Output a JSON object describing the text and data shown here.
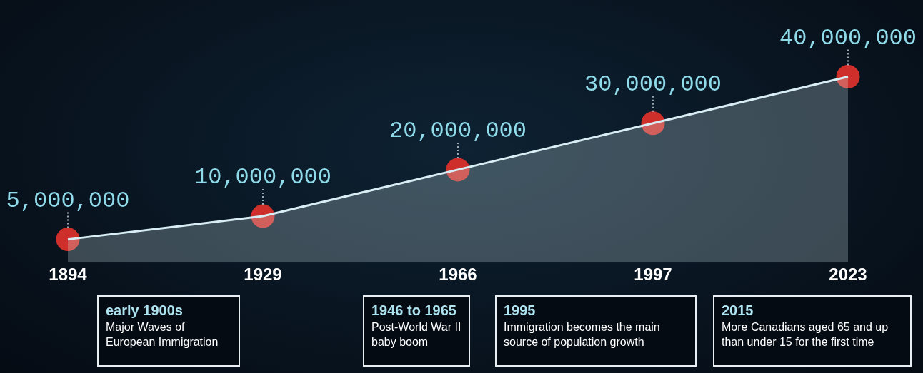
{
  "chart_data": {
    "type": "area",
    "categories": [
      "1894",
      "1929",
      "1966",
      "1997",
      "2023"
    ],
    "grid": false,
    "series": [
      {
        "color": "#d8eef4",
        "marker": "none",
        "values": [
          5000000,
          10000000,
          20000000,
          30000000,
          40000000
        ]
      },
      {
        "type": "scatter",
        "color": "#cf2f2a",
        "marker": "circle",
        "values": [
          5000000,
          10000000,
          20000000,
          30000000,
          40000000
        ],
        "value_labels": [
          "5,000,000",
          "10,000,000",
          "20,000,000",
          "30,000,000",
          "40,000,000"
        ]
      }
    ],
    "legend": false,
    "tick_labels": "x",
    "annotations": [
      "early 1900s\nMajor Waves of\nEuropean Immigration",
      "1946 to 1965\nPost-World War II\nbaby boom",
      "1995\nImmigration becomes the main\nsource of population growth",
      "2015\nMore Canadians aged 65 and up\nthan under 15 for the first time"
    ]
  }
}
